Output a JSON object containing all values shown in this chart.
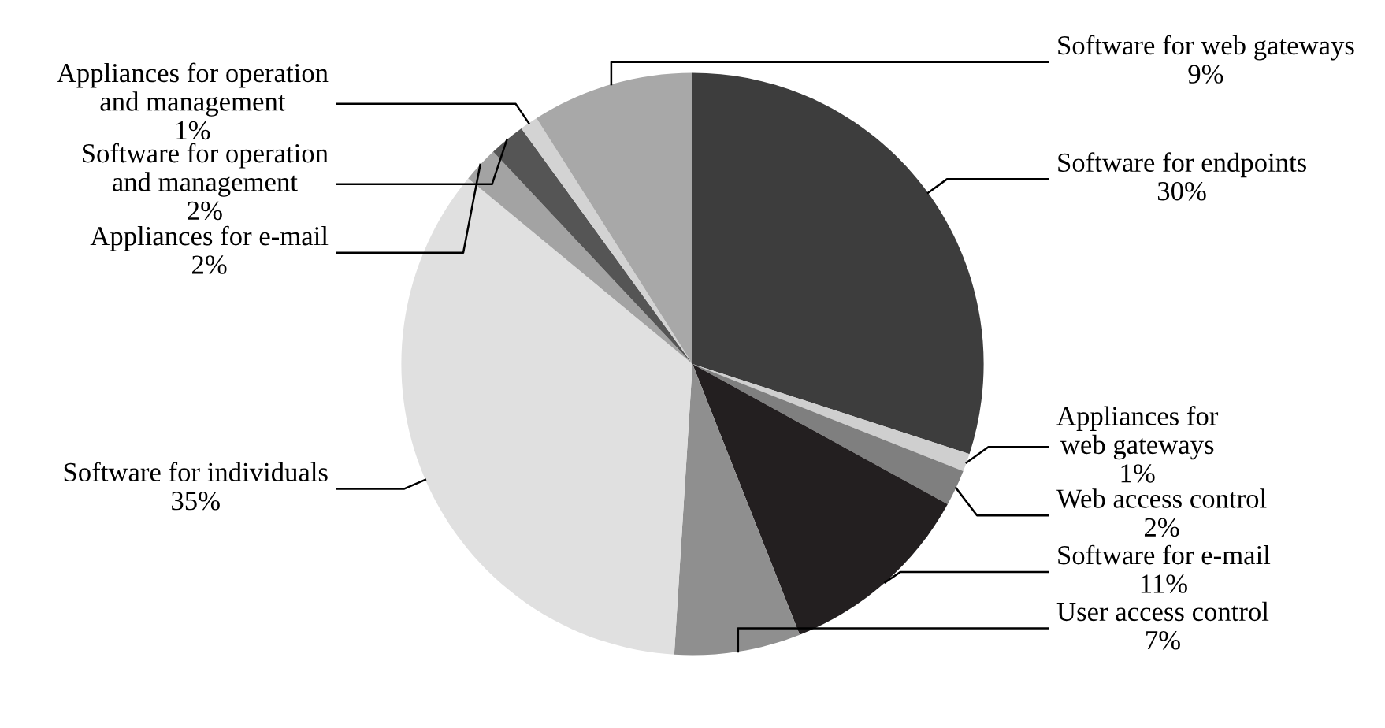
{
  "chart_data": {
    "type": "pie",
    "categories": [
      "Software for endpoints",
      "Appliances for\nweb gateways",
      "Web access control",
      "Software for e-mail",
      "User access control",
      "Software for individuals",
      "Appliances for e-mail",
      "Software for operation\nand management",
      "Appliances for operation\nand management",
      "Software for web gateways"
    ],
    "values": [
      30,
      1,
      2,
      11,
      7,
      35,
      2,
      2,
      1,
      9
    ],
    "value_labels": [
      "30%",
      "1%",
      "2%",
      "11%",
      "7%",
      "35%",
      "2%",
      "2%",
      "1%",
      "9%"
    ],
    "colors": [
      "#3d3d3d",
      "#cfcfcf",
      "#7f7f7f",
      "#231f20",
      "#8f8f8f",
      "#e0e0e0",
      "#a3a3a3",
      "#555555",
      "#d3d3d3",
      "#a8a8a8"
    ]
  }
}
